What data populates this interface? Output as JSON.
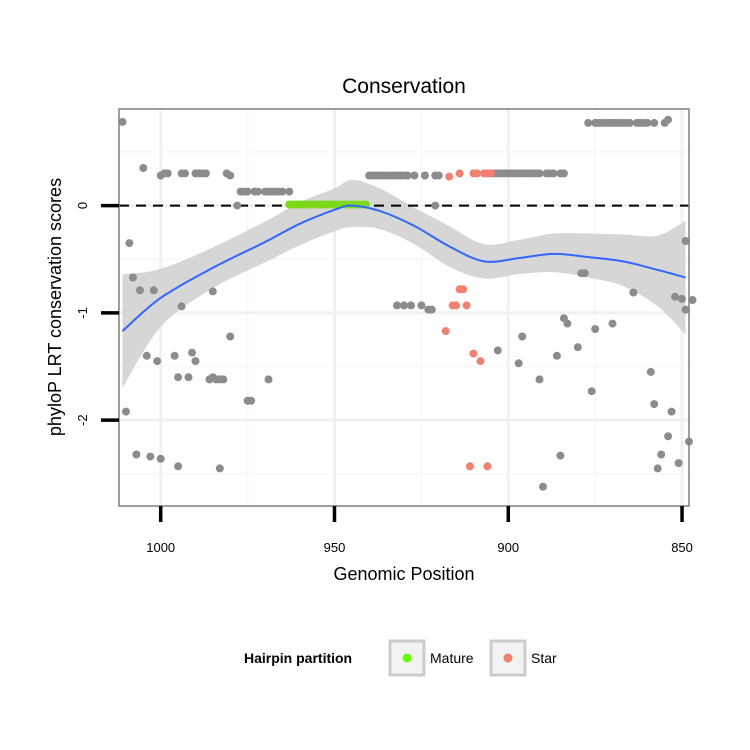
{
  "chart_data": {
    "type": "scatter",
    "title": "Conservation",
    "xlabel": "Genomic Position",
    "ylabel": "phyloP LRT conservation scores",
    "xlim": [
      1012,
      848
    ],
    "x_reversed": true,
    "ylim": [
      -2.8,
      0.9
    ],
    "x_ticks": [
      1000,
      950,
      900,
      850
    ],
    "y_ticks": [
      0,
      -1,
      -2
    ],
    "reference_line": {
      "y": 0,
      "style": "dashed",
      "color": "#000000"
    },
    "grid": true,
    "legend": {
      "title": "Hairpin partition",
      "placement": "bottom",
      "entries": [
        {
          "label": "Mature",
          "color": "#66ff00"
        },
        {
          "label": "Star",
          "color": "#f08070"
        }
      ]
    },
    "colors": {
      "Other": "#8c8c8c",
      "Mature": "#7cd91a",
      "Star": "#f08070",
      "smooth": "#3366ff",
      "ribbon": "#d4d4d4"
    },
    "series": [
      {
        "name": "Other",
        "points": [
          [
            1011,
            0.78
          ],
          [
            1010,
            -1.92
          ],
          [
            1009,
            -0.35
          ],
          [
            1008,
            -0.67
          ],
          [
            1007,
            -2.32
          ],
          [
            1006,
            -0.79
          ],
          [
            1005,
            0.35
          ],
          [
            1004,
            -1.4
          ],
          [
            1003,
            -2.34
          ],
          [
            1002,
            -0.79
          ],
          [
            1001,
            -1.45
          ],
          [
            1000,
            0.28
          ],
          [
            1000,
            -2.36
          ],
          [
            999,
            0.3
          ],
          [
            998,
            0.3
          ],
          [
            996,
            -1.4
          ],
          [
            995,
            -2.43
          ],
          [
            995,
            -1.6
          ],
          [
            994,
            -0.94
          ],
          [
            994,
            0.3
          ],
          [
            993,
            0.3
          ],
          [
            992,
            -1.6
          ],
          [
            991,
            -1.37
          ],
          [
            990,
            0.3
          ],
          [
            990,
            -1.45
          ],
          [
            989,
            0.3
          ],
          [
            988,
            0.3
          ],
          [
            987,
            0.3
          ],
          [
            986,
            -1.62
          ],
          [
            985,
            -0.8
          ],
          [
            985,
            -1.6
          ],
          [
            984,
            -1.62
          ],
          [
            983,
            -2.45
          ],
          [
            983,
            -1.62
          ],
          [
            982,
            -1.62
          ],
          [
            981,
            0.3
          ],
          [
            980,
            -1.22
          ],
          [
            980,
            0.28
          ],
          [
            978,
            0.0
          ],
          [
            977,
            0.13
          ],
          [
            976,
            0.13
          ],
          [
            975,
            -1.82
          ],
          [
            975,
            0.13
          ],
          [
            974,
            -1.82
          ],
          [
            973,
            0.13
          ],
          [
            972,
            0.13
          ],
          [
            970,
            0.13
          ],
          [
            969,
            -1.62
          ],
          [
            969,
            0.13
          ],
          [
            968,
            0.13
          ],
          [
            967,
            0.13
          ],
          [
            966,
            0.13
          ],
          [
            965,
            0.13
          ],
          [
            963,
            0.13
          ],
          [
            940,
            0.28
          ],
          [
            939,
            0.28
          ],
          [
            938,
            0.28
          ],
          [
            937,
            0.28
          ],
          [
            936,
            0.28
          ],
          [
            935,
            0.28
          ],
          [
            934,
            0.28
          ],
          [
            933,
            0.28
          ],
          [
            932,
            -0.93
          ],
          [
            932,
            0.28
          ],
          [
            931,
            0.28
          ],
          [
            930,
            -0.93
          ],
          [
            930,
            0.28
          ],
          [
            929,
            0.28
          ],
          [
            928,
            -0.93
          ],
          [
            927,
            0.28
          ],
          [
            925,
            -0.93
          ],
          [
            924,
            0.28
          ],
          [
            923,
            -0.97
          ],
          [
            922,
            -0.97
          ],
          [
            921,
            0.0
          ],
          [
            921,
            0.28
          ],
          [
            920,
            0.28
          ],
          [
            905,
            0.3
          ],
          [
            904,
            0.3
          ],
          [
            903,
            0.3
          ],
          [
            903,
            -1.35
          ],
          [
            902,
            0.3
          ],
          [
            901,
            0.3
          ],
          [
            900,
            0.3
          ],
          [
            899,
            0.3
          ],
          [
            898,
            0.3
          ],
          [
            897,
            -1.47
          ],
          [
            897,
            0.3
          ],
          [
            896,
            -1.22
          ],
          [
            896,
            0.3
          ],
          [
            895,
            0.3
          ],
          [
            894,
            0.3
          ],
          [
            893,
            0.3
          ],
          [
            892,
            0.3
          ],
          [
            891,
            -1.62
          ],
          [
            891,
            0.3
          ],
          [
            890,
            -2.62
          ],
          [
            889,
            0.3
          ],
          [
            888,
            0.3
          ],
          [
            887,
            0.3
          ],
          [
            886,
            -1.4
          ],
          [
            885,
            -2.33
          ],
          [
            885,
            0.3
          ],
          [
            884,
            -1.05
          ],
          [
            884,
            0.3
          ],
          [
            883,
            -1.1
          ],
          [
            880,
            -1.32
          ],
          [
            879,
            -0.63
          ],
          [
            878,
            -0.63
          ],
          [
            877,
            0.77
          ],
          [
            876,
            -1.73
          ],
          [
            875,
            -1.15
          ],
          [
            875,
            0.77
          ],
          [
            874,
            0.77
          ],
          [
            873,
            0.77
          ],
          [
            872,
            0.77
          ],
          [
            871,
            0.77
          ],
          [
            870,
            -1.1
          ],
          [
            870,
            0.77
          ],
          [
            869,
            0.77
          ],
          [
            868,
            0.77
          ],
          [
            867,
            0.77
          ],
          [
            866,
            0.77
          ],
          [
            865,
            0.77
          ],
          [
            864,
            -0.81
          ],
          [
            863,
            0.77
          ],
          [
            862,
            0.77
          ],
          [
            861,
            0.77
          ],
          [
            860,
            0.77
          ],
          [
            859,
            -1.55
          ],
          [
            858,
            -1.85
          ],
          [
            858,
            0.77
          ],
          [
            857,
            -2.45
          ],
          [
            856,
            -2.32
          ],
          [
            855,
            0.77
          ],
          [
            854,
            -2.15
          ],
          [
            854,
            0.8
          ],
          [
            853,
            -1.92
          ],
          [
            852,
            -0.85
          ],
          [
            851,
            -2.4
          ],
          [
            850,
            -0.87
          ],
          [
            849,
            -0.97
          ],
          [
            849,
            -0.33
          ],
          [
            848,
            -2.2
          ],
          [
            847,
            -0.88
          ]
        ]
      },
      {
        "name": "Mature",
        "points": [
          [
            963,
            0.01
          ],
          [
            962,
            0.01
          ],
          [
            961,
            0.01
          ],
          [
            960,
            0.01
          ],
          [
            959,
            0.01
          ],
          [
            958,
            0.01
          ],
          [
            957,
            0.01
          ],
          [
            956,
            0.01
          ],
          [
            955,
            0.01
          ],
          [
            954,
            0.01
          ],
          [
            953,
            0.01
          ],
          [
            952,
            0.01
          ],
          [
            951,
            0.01
          ],
          [
            950,
            0.01
          ],
          [
            949,
            0.01
          ],
          [
            948,
            0.01
          ],
          [
            947,
            0.01
          ],
          [
            946,
            0.01
          ],
          [
            945,
            0.01
          ],
          [
            944,
            0.01
          ],
          [
            943,
            0.01
          ],
          [
            942,
            0.01
          ],
          [
            941,
            0.01
          ]
        ]
      },
      {
        "name": "Star",
        "points": [
          [
            918,
            -1.17
          ],
          [
            917,
            0.27
          ],
          [
            916,
            -0.93
          ],
          [
            915,
            -0.93
          ],
          [
            914,
            0.3
          ],
          [
            914,
            -0.78
          ],
          [
            913,
            -0.78
          ],
          [
            912,
            -0.93
          ],
          [
            911,
            -2.43
          ],
          [
            910,
            0.3
          ],
          [
            910,
            -1.38
          ],
          [
            909,
            0.3
          ],
          [
            908,
            -1.45
          ],
          [
            907,
            0.3
          ],
          [
            906,
            -2.43
          ],
          [
            906,
            0.3
          ],
          [
            905,
            0.3
          ]
        ]
      }
    ],
    "smooth": {
      "x": [
        1011,
        1000,
        985,
        970,
        960,
        950,
        945,
        937,
        927,
        917,
        907,
        897,
        887,
        877,
        867,
        857,
        849
      ],
      "y": [
        -1.17,
        -0.86,
        -0.58,
        -0.34,
        -0.17,
        -0.04,
        0.0,
        -0.05,
        -0.19,
        -0.38,
        -0.52,
        -0.49,
        -0.45,
        -0.48,
        -0.52,
        -0.6,
        -0.67
      ],
      "lower": [
        -1.7,
        -1.13,
        -0.77,
        -0.53,
        -0.37,
        -0.24,
        -0.2,
        -0.22,
        -0.36,
        -0.57,
        -0.68,
        -0.64,
        -0.62,
        -0.67,
        -0.75,
        -0.94,
        -1.2
      ],
      "upper": [
        -0.64,
        -0.59,
        -0.39,
        -0.15,
        0.03,
        0.16,
        0.24,
        0.16,
        -0.02,
        -0.19,
        -0.36,
        -0.32,
        -0.26,
        -0.26,
        -0.27,
        -0.28,
        -0.14
      ]
    }
  }
}
